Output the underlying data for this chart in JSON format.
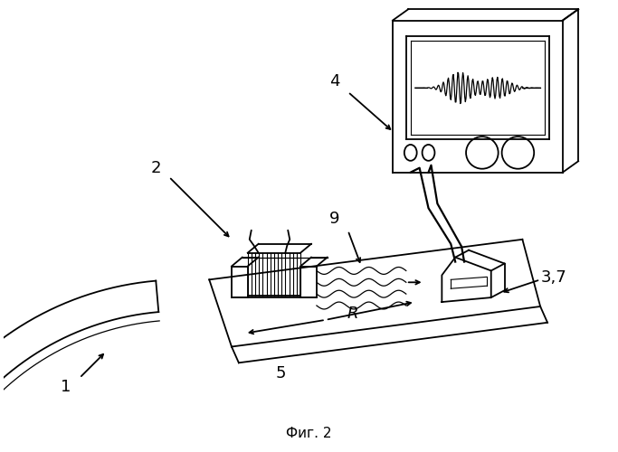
{
  "title": "Фиг. 2",
  "background_color": "#ffffff",
  "line_color": "#000000",
  "fig_width": 6.83,
  "fig_height": 5.0,
  "dpi": 100
}
